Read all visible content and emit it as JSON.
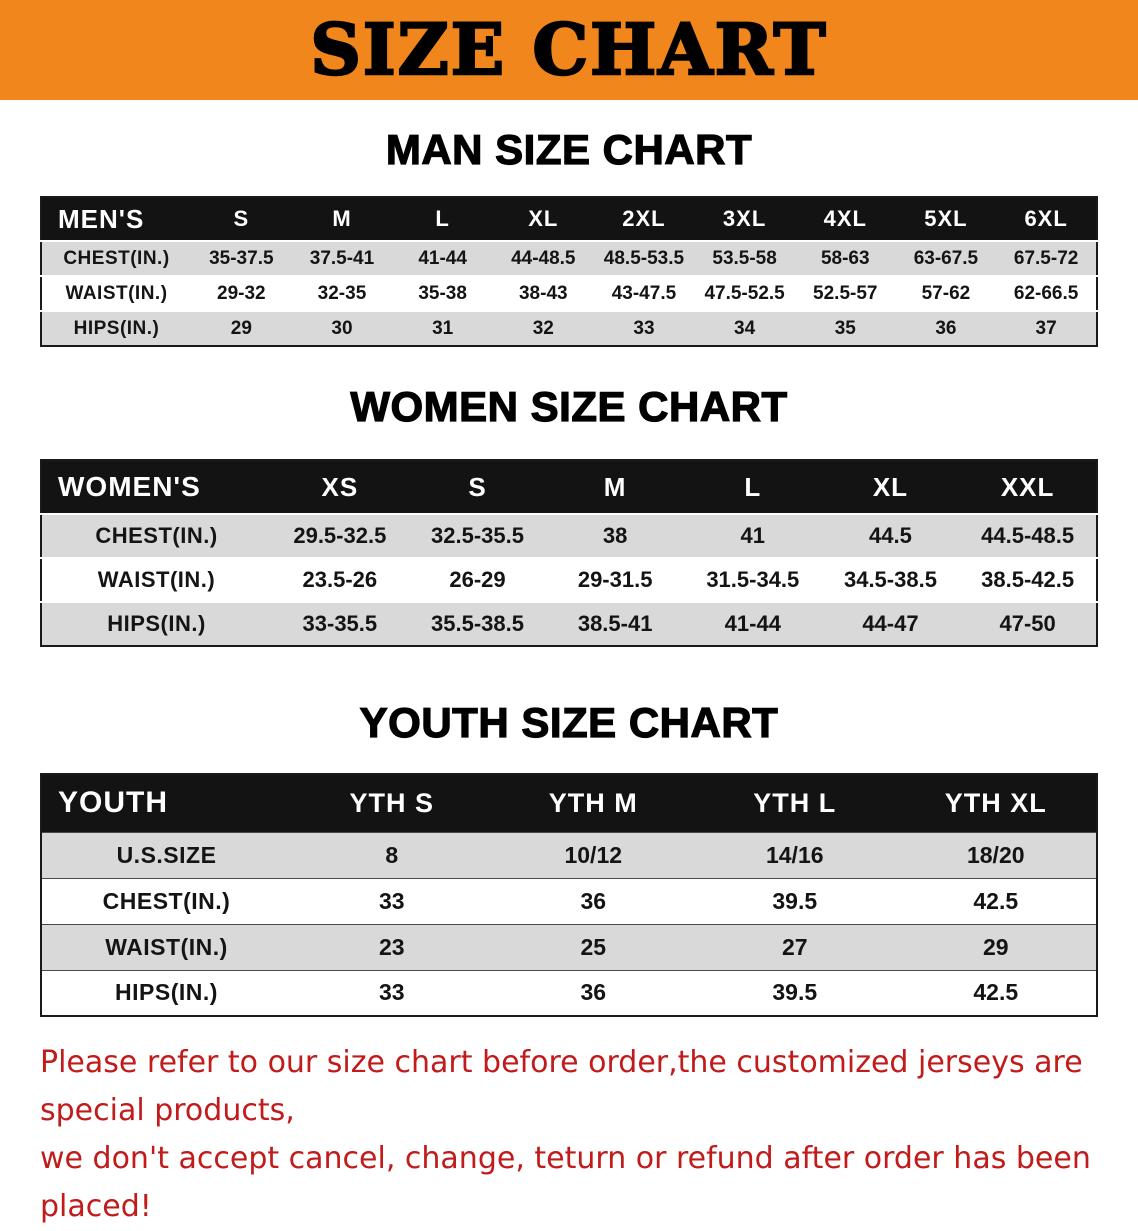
{
  "banner": {
    "title": "SIZE CHART"
  },
  "colors": {
    "banner_bg": "#F1861C",
    "header_row_bg": "#131313",
    "header_row_text": "#FFFFFF",
    "stripe_gray": "#D9D9D9",
    "disclaimer_red": "#C11B1B"
  },
  "sections": [
    {
      "id": "men",
      "heading": "MAN SIZE CHART",
      "header": [
        "MEN'S",
        "S",
        "M",
        "L",
        "XL",
        "2XL",
        "3XL",
        "4XL",
        "5XL",
        "6XL"
      ],
      "rows": [
        {
          "label": "CHEST(IN.)",
          "values": [
            "35-37.5",
            "37.5-41",
            "41-44",
            "44-48.5",
            "48.5-53.5",
            "53.5-58",
            "58-63",
            "63-67.5",
            "67.5-72"
          ]
        },
        {
          "label": "WAIST(IN.)",
          "values": [
            "29-32",
            "32-35",
            "35-38",
            "38-43",
            "43-47.5",
            "47.5-52.5",
            "52.5-57",
            "57-62",
            "62-66.5"
          ]
        },
        {
          "label": "HIPS(IN.)",
          "values": [
            "29",
            "30",
            "31",
            "32",
            "33",
            "34",
            "35",
            "36",
            "37"
          ]
        }
      ]
    },
    {
      "id": "women",
      "heading": "WOMEN SIZE CHART",
      "header": [
        "WOMEN'S",
        "XS",
        "S",
        "M",
        "L",
        "XL",
        "XXL"
      ],
      "rows": [
        {
          "label": "CHEST(IN.)",
          "values": [
            "29.5-32.5",
            "32.5-35.5",
            "38",
            "41",
            "44.5",
            "44.5-48.5"
          ]
        },
        {
          "label": "WAIST(IN.)",
          "values": [
            "23.5-26",
            "26-29",
            "29-31.5",
            "31.5-34.5",
            "34.5-38.5",
            "38.5-42.5"
          ]
        },
        {
          "label": "HIPS(IN.)",
          "values": [
            "33-35.5",
            "35.5-38.5",
            "38.5-41",
            "41-44",
            "44-47",
            "47-50"
          ]
        }
      ]
    },
    {
      "id": "youth",
      "heading": "YOUTH SIZE CHART",
      "header": [
        "YOUTH",
        "YTH S",
        "YTH M",
        "YTH L",
        "YTH XL"
      ],
      "rows": [
        {
          "label": "U.S.SIZE",
          "values": [
            "8",
            "10/12",
            "14/16",
            "18/20"
          ]
        },
        {
          "label": "CHEST(IN.)",
          "values": [
            "33",
            "36",
            "39.5",
            "42.5"
          ]
        },
        {
          "label": "WAIST(IN.)",
          "values": [
            "23",
            "25",
            "27",
            "29"
          ]
        },
        {
          "label": "HIPS(IN.)",
          "values": [
            "33",
            "36",
            "39.5",
            "42.5"
          ]
        }
      ]
    }
  ],
  "disclaimer": {
    "line1": "Please refer to our size chart before order,the customized jerseys are special products,",
    "line2": "we don't accept cancel, change, teturn or refund after order has been placed!"
  }
}
